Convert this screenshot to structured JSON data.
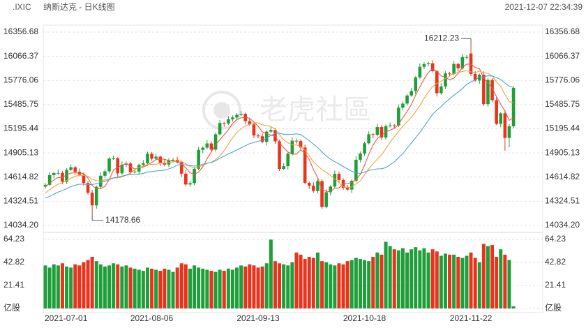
{
  "header": {
    "symbol": ".IXIC",
    "title": "纳斯达克 - 日K线图",
    "timestamp": "2021-12-07 22:34:39"
  },
  "watermark": "老虎社區",
  "chart_data": {
    "type": "candlestick",
    "categories": [
      "2021-07-01",
      null,
      null,
      null,
      null,
      null,
      null,
      null,
      null,
      null,
      null,
      null,
      null,
      null,
      null,
      null,
      null,
      null,
      null,
      null,
      null,
      null,
      null,
      null,
      null,
      "2021-08-06",
      null,
      null,
      null,
      null,
      null,
      null,
      null,
      null,
      null,
      null,
      null,
      null,
      null,
      null,
      null,
      null,
      null,
      null,
      null,
      null,
      null,
      null,
      null,
      null,
      "2021-09-13",
      null,
      null,
      null,
      null,
      null,
      null,
      null,
      null,
      null,
      null,
      null,
      null,
      null,
      null,
      null,
      null,
      null,
      null,
      null,
      null,
      null,
      null,
      null,
      null,
      "2021-10-18",
      null,
      null,
      null,
      null,
      null,
      null,
      null,
      null,
      null,
      null,
      null,
      null,
      null,
      null,
      null,
      null,
      null,
      null,
      null,
      null,
      null,
      null,
      null,
      null,
      "2021-11-22",
      null,
      null,
      null,
      null,
      null,
      null,
      null,
      null,
      null,
      null
    ],
    "open": [
      14500,
      14522,
      14639,
      14663,
      14665,
      14559,
      14701,
      14733,
      14678,
      14644,
      14543,
      14427,
      14275,
      14498,
      14631,
      14684,
      14837,
      14840,
      14660,
      14763,
      14778,
      14673,
      14681,
      14761,
      14780,
      14895,
      14835,
      14860,
      14788,
      14765,
      14816,
      14823,
      14793,
      14656,
      14526,
      14542,
      14715,
      14942,
      14969,
      15019,
      14945,
      15129,
      15265,
      15259,
      15309,
      15331,
      15363,
      15374,
      15287,
      15248,
      15115,
      15105,
      15037,
      15161,
      15181,
      15044,
      14713,
      14746,
      14896,
      15052,
      15048,
      14970,
      14546,
      14512,
      14448,
      14567,
      14255,
      14433,
      14501,
      14654,
      14580,
      14486,
      14465,
      14571,
      14823,
      14897,
      15021,
      15130,
      15122,
      15216,
      15090,
      15226,
      15236,
      15235,
      15448,
      15498,
      15595,
      15649,
      15812,
      15940,
      15971,
      15982,
      15887,
      15623,
      15704,
      15860,
      15853,
      15974,
      15921,
      16057,
      16100,
      15854,
      15775,
      15845,
      15491,
      15782,
      15538,
      15254,
      15381,
      15085,
      15225
    ],
    "high": [
      14542,
      14674,
      14678,
      14705,
      14690,
      14721,
      14768,
      14748,
      14718,
      14669,
      14563,
      14462,
      14513,
      14671,
      14709,
      14857,
      14875,
      14855,
      14803,
      14803,
      14798,
      14716,
      14776,
      14820,
      14920,
      14915,
      14895,
      14875,
      14828,
      14841,
      14843,
      14858,
      14808,
      14696,
      14567,
      14735,
      14977,
      14984,
      15059,
      15044,
      15149,
      15300,
      15280,
      15349,
      15356,
      15383,
      15409,
      15389,
      15327,
      15273,
      15135,
      15140,
      15176,
      15221,
      15206,
      15064,
      14781,
      14911,
      15092,
      15077,
      15068,
      15005,
      14561,
      14552,
      14592,
      14587,
      14468,
      14516,
      14694,
      14679,
      14600,
      14521,
      14586,
      14863,
      14922,
      15041,
      15165,
      15145,
      15256,
      15241,
      15246,
      15271,
      15251,
      15488,
      15523,
      15615,
      15684,
      15827,
      15980,
      15996,
      16002,
      16017,
      15902,
      15744,
      15885,
      15880,
      16009,
      15989,
      16097,
      16082,
      16212.23,
      15889,
      15860,
      15885,
      15807,
      15802,
      15573,
      15396,
      15421,
      15250,
      15705
    ],
    "low": [
      14475,
      14507,
      14599,
      14643,
      14529,
      14534,
      14686,
      14638,
      14624,
      14513,
      14402,
      14178.66,
      14235,
      14478,
      14601,
      14659,
      14822,
      14620,
      14640,
      14733,
      14648,
      14658,
      14641,
      14741,
      14750,
      14810,
      14820,
      14748,
      14745,
      14735,
      14791,
      14778,
      14616,
      14506,
      14496,
      14517,
      14700,
      14902,
      14949,
      14915,
      14920,
      15114,
      15219,
      15239,
      15279,
      15306,
      15348,
      15247,
      15228,
      15085,
      15080,
      15022,
      14997,
      15141,
      15014,
      14688,
      14698,
      14706,
      14876,
      15018,
      14945,
      14531,
      14472,
      14428,
      14418,
      14230,
      14240,
      14393,
      14481,
      14550,
      14461,
      14450,
      14425,
      14551,
      14793,
      14872,
      15006,
      15082,
      15102,
      15060,
      15065,
      15211,
      15195,
      15215,
      15418,
      15473,
      15580,
      15609,
      15792,
      15910,
      15946,
      15872,
      15583,
      15603,
      15674,
      15828,
      15838,
      15881,
      15901,
      16027,
      15829,
      15760,
      15735,
      15471,
      15461,
      15513,
      15239,
      15214,
      14931,
      14972,
      15200
    ],
    "close": [
      14522,
      14639,
      14663,
      14665,
      14559,
      14701,
      14733,
      14678,
      14644,
      14543,
      14427,
      14275,
      14498,
      14631,
      14684,
      14837,
      14840,
      14660,
      14763,
      14778,
      14673,
      14681,
      14761,
      14780,
      14895,
      14835,
      14860,
      14788,
      14765,
      14816,
      14823,
      14793,
      14656,
      14526,
      14542,
      14715,
      14942,
      14969,
      15019,
      14945,
      15129,
      15265,
      15259,
      15309,
      15331,
      15363,
      15374,
      15287,
      15248,
      15115,
      15105,
      15037,
      15161,
      15181,
      15044,
      14713,
      14746,
      14896,
      15052,
      15048,
      14970,
      14546,
      14512,
      14448,
      14567,
      14255,
      14433,
      14501,
      14654,
      14580,
      14486,
      14465,
      14571,
      14823,
      14897,
      15021,
      15130,
      15122,
      15216,
      15090,
      15226,
      15236,
      15235,
      15448,
      15498,
      15595,
      15649,
      15812,
      15940,
      15971,
      15982,
      15887,
      15623,
      15704,
      15860,
      15853,
      15974,
      15921,
      16057,
      16057,
      15854,
      15775,
      15845,
      15491,
      15782,
      15538,
      15254,
      15381,
      15085,
      15225,
      15686
    ],
    "up_color": "#1f9e3a",
    "down_color": "#e8341c",
    "lines": [
      {
        "color": "#e8584a",
        "values": [
          14500,
          14540,
          14580,
          14610,
          14610,
          14645,
          14664,
          14667,
          14663,
          14660,
          14605,
          14513,
          14477,
          14475,
          14503,
          14585,
          14698,
          14730,
          14757,
          14776,
          14743,
          14711,
          14731,
          14735,
          14758,
          14790,
          14826,
          14832,
          14829,
          14813,
          14810,
          14797,
          14771,
          14723,
          14668,
          14646,
          14676,
          14739,
          14837,
          14918,
          15001,
          15065,
          15123,
          15181,
          15259,
          15305,
          15327,
          15333,
          15321,
          15277,
          15226,
          15158,
          15133,
          15120,
          15106,
          15027,
          14969,
          14916,
          14890,
          14891,
          14942,
          14902,
          14826,
          14705,
          14609,
          14466,
          14443,
          14441,
          14482,
          14485,
          14531,
          14537,
          14551,
          14585,
          14648,
          14755,
          14888,
          14999,
          15077,
          15116,
          15157,
          15178,
          15201,
          15247,
          15329,
          15402,
          15485,
          15600,
          15699,
          15793,
          15871,
          15918,
          15881,
          15833,
          15811,
          15785,
          15803,
          15862,
          15933,
          15972,
          15973,
          15933,
          15918,
          15804,
          15749,
          15686,
          15582,
          15489,
          15408,
          15297,
          15326
        ]
      },
      {
        "color": "#f0a33c",
        "values": [
          14425,
          14460,
          14500,
          14530,
          14545,
          14573,
          14602,
          14624,
          14637,
          14635,
          14625,
          14589,
          14572,
          14569,
          14582,
          14595,
          14606,
          14604,
          14616,
          14640,
          14664,
          14705,
          14731,
          14746,
          14767,
          14767,
          14769,
          14782,
          14782,
          14786,
          14800,
          14812,
          14802,
          14776,
          14741,
          14728,
          14737,
          14755,
          14780,
          14793,
          14824,
          14871,
          14931,
          15009,
          15089,
          15153,
          15196,
          15228,
          15251,
          15268,
          15266,
          15243,
          15233,
          15221,
          15192,
          15127,
          15064,
          15025,
          15005,
          14999,
          14985,
          14936,
          14871,
          14798,
          14750,
          14704,
          14673,
          14634,
          14594,
          14547,
          14499,
          14490,
          14496,
          14534,
          14567,
          14643,
          14713,
          14775,
          14831,
          14882,
          14956,
          15033,
          15100,
          15162,
          15223,
          15280,
          15332,
          15401,
          15473,
          15561,
          15637,
          15702,
          15741,
          15766,
          15802,
          15828,
          15861,
          15872,
          15883,
          15892,
          15879,
          15868,
          15890,
          15869,
          15861,
          15830,
          15758,
          15704,
          15606,
          15523,
          15506
        ]
      },
      {
        "color": "#4aa3d9",
        "values": [
          14363,
          14385,
          14410,
          14435,
          14453,
          14477,
          14501,
          14517,
          14529,
          14530,
          14525,
          14525,
          14536,
          14550,
          14564,
          14584,
          14604,
          14614,
          14627,
          14638,
          14645,
          14647,
          14652,
          14658,
          14675,
          14681,
          14688,
          14693,
          14699,
          14713,
          14732,
          14759,
          14767,
          14761,
          14754,
          14748,
          14753,
          14769,
          14781,
          14790,
          14812,
          14842,
          14867,
          14893,
          14915,
          14941,
          14967,
          14992,
          15016,
          15031,
          15045,
          15057,
          15082,
          15115,
          15141,
          15140,
          15130,
          15127,
          15128,
          15134,
          15126,
          15090,
          15052,
          15010,
          14971,
          14916,
          14869,
          14830,
          14800,
          14773,
          14742,
          14713,
          14684,
          14666,
          14659,
          14674,
          14693,
          14705,
          14713,
          14715,
          14728,
          14762,
          14798,
          14848,
          14895,
          14962,
          15023,
          15088,
          15152,
          15222,
          15297,
          15368,
          15421,
          15464,
          15513,
          15554,
          15597,
          15637,
          15678,
          15727,
          15758,
          15785,
          15816,
          15818,
          15832,
          15829,
          15810,
          15788,
          15745,
          15708,
          15693
        ]
      }
    ],
    "ylim": [
      14034.2,
      16356.68
    ],
    "yticks": [
      {
        "value": 14034.2,
        "label": "14034.20"
      },
      14324.51,
      14614.82,
      14905.13,
      15195.44,
      15485.75,
      15776.06,
      16066.37,
      16356.68
    ],
    "volume": {
      "values": [
        40,
        38,
        41,
        40,
        42,
        39,
        38,
        41,
        40,
        43,
        45,
        48,
        44,
        41,
        39,
        40,
        42,
        41,
        39,
        40,
        38,
        37,
        36,
        35,
        38,
        37,
        36,
        35,
        37,
        36,
        34,
        38,
        42,
        41,
        37,
        40,
        38,
        37,
        36,
        35,
        34,
        36,
        35,
        37,
        36,
        38,
        40,
        39,
        41,
        40,
        38,
        39,
        42,
        64,
        44,
        42,
        41,
        40,
        43,
        52,
        50,
        46,
        48,
        47,
        52,
        44,
        43,
        41,
        40,
        42,
        41,
        44,
        45,
        47,
        46,
        45,
        44,
        48,
        52,
        50,
        62,
        58,
        55,
        54,
        56,
        52,
        55,
        57,
        54,
        56,
        52,
        55,
        53,
        49,
        51,
        50,
        50,
        48,
        47,
        49,
        52,
        47,
        43,
        60,
        58,
        59,
        48,
        55,
        50,
        45,
        2
      ],
      "ylim": [
        0,
        64.23
      ],
      "yticks": [
        {
          "value": 0,
          "label": "亿股"
        },
        21.41,
        42.82,
        64.23
      ]
    }
  }
}
